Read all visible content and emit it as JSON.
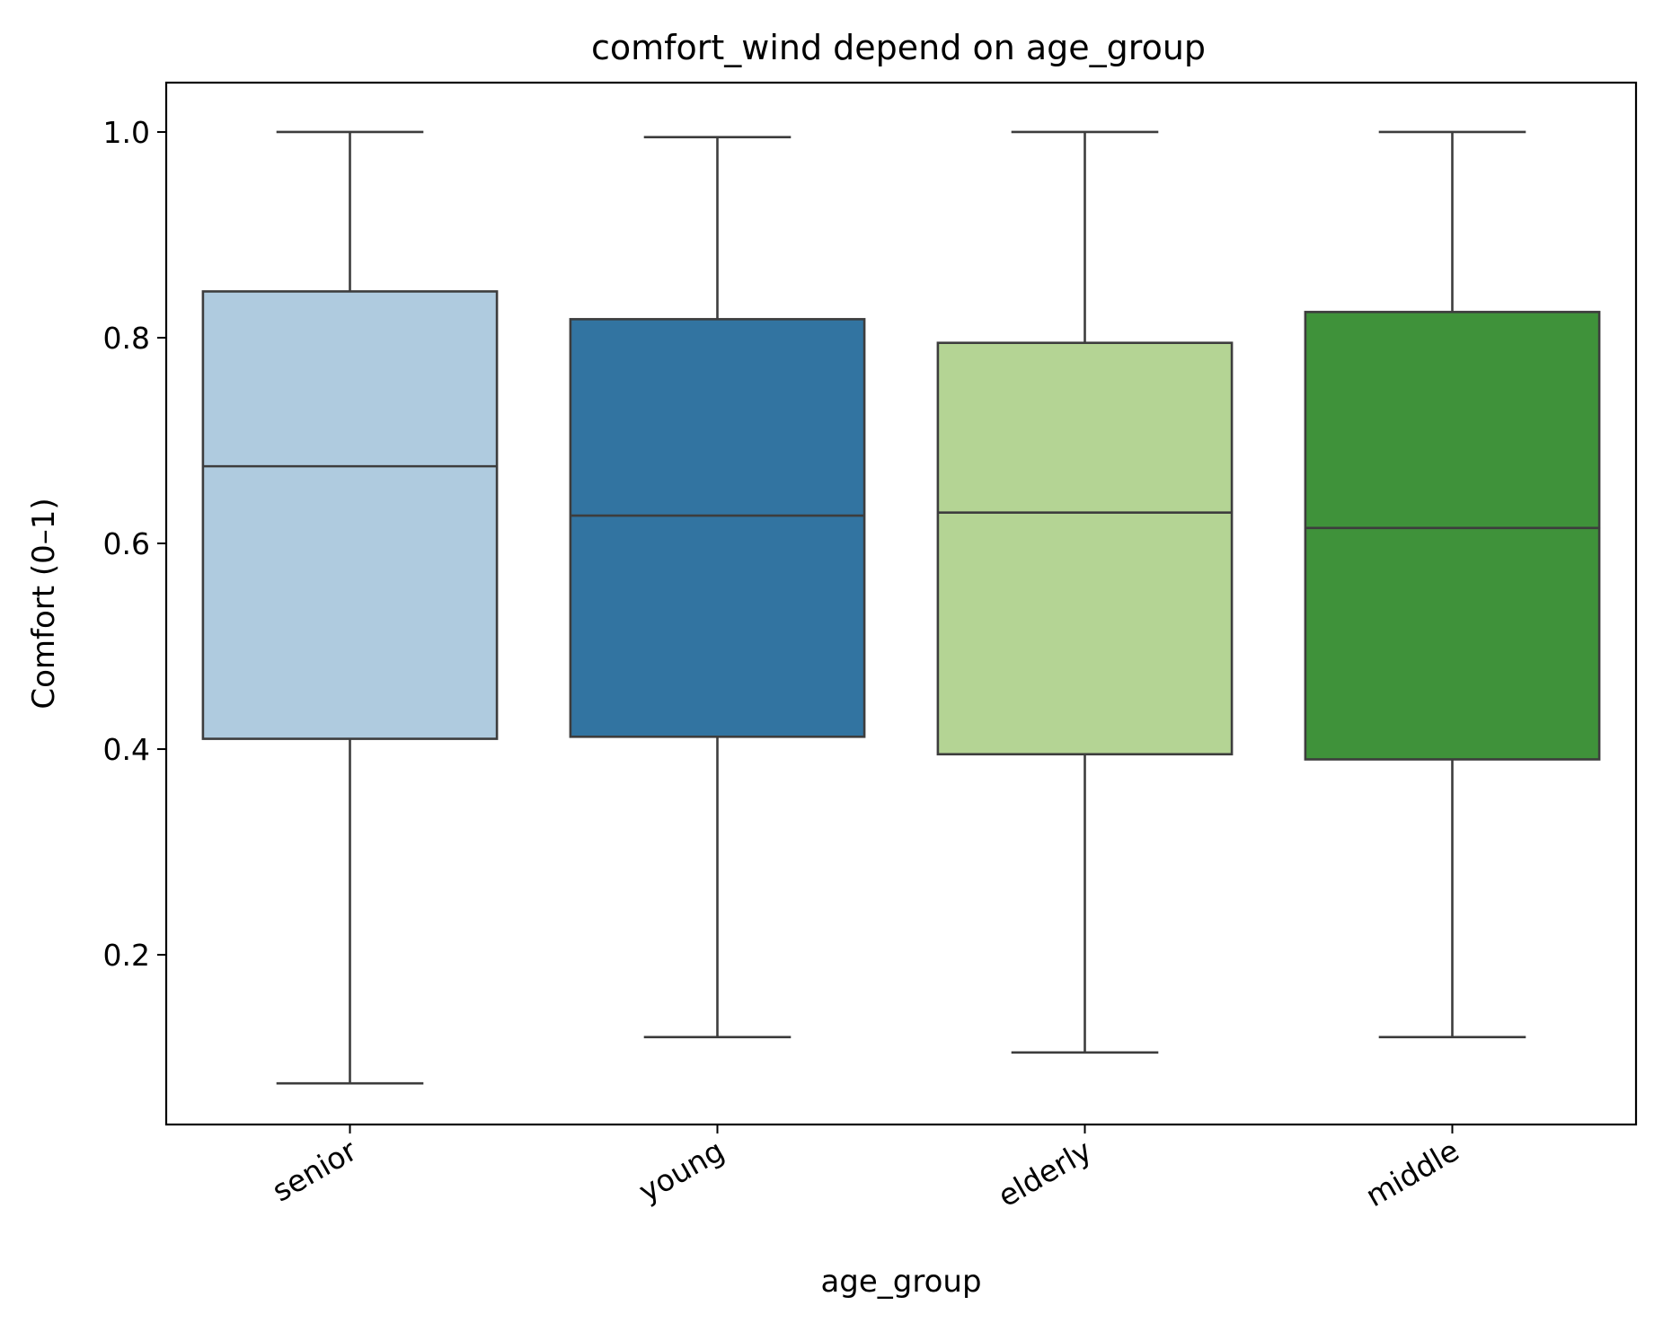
{
  "chart_data": {
    "type": "box",
    "title": "comfort_wind depend on age_group",
    "xlabel": "age_group",
    "ylabel": "Comfort (0–1)",
    "ylim": [
      0.035,
      1.048
    ],
    "yticks": [
      0.2,
      0.4,
      0.6,
      0.8,
      1.0
    ],
    "ytick_labels": [
      "0.2",
      "0.4",
      "0.6",
      "0.8",
      "1.0"
    ],
    "grid": false,
    "categories": [
      "senior",
      "young",
      "elderly",
      "middle"
    ],
    "colors": [
      "#afcbdf",
      "#3274a1",
      "#b4d494",
      "#3f923a"
    ],
    "boxes": [
      {
        "category": "senior",
        "whislo": 0.075,
        "q1": 0.41,
        "median": 0.675,
        "q3": 0.845,
        "whishi": 1.0
      },
      {
        "category": "young",
        "whislo": 0.12,
        "q1": 0.412,
        "median": 0.627,
        "q3": 0.818,
        "whishi": 0.995
      },
      {
        "category": "elderly",
        "whislo": 0.105,
        "q1": 0.395,
        "median": 0.63,
        "q3": 0.795,
        "whishi": 1.0
      },
      {
        "category": "middle",
        "whislo": 0.12,
        "q1": 0.39,
        "median": 0.615,
        "q3": 0.825,
        "whishi": 1.0
      }
    ]
  }
}
